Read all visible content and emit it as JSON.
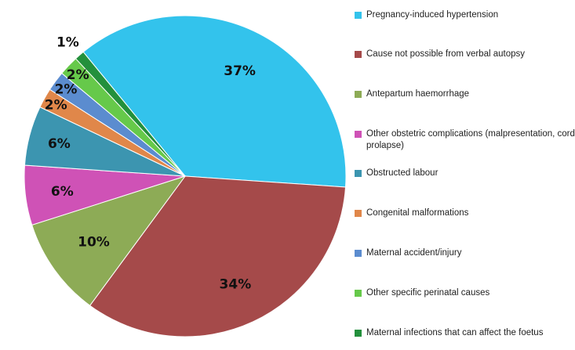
{
  "chart_data": {
    "type": "pie",
    "title": "",
    "legend_position": "right",
    "slices": [
      {
        "label": "Pregnancy-induced hypertension",
        "value": 37,
        "value_label": "37%",
        "color": "#33C3EC"
      },
      {
        "label": "Cause not possible from verbal autopsy",
        "value": 34,
        "value_label": "34%",
        "color": "#A54A4A"
      },
      {
        "label": "Antepartum haemorrhage",
        "value": 10,
        "value_label": "10%",
        "color": "#8DAB56"
      },
      {
        "label": "Other obstetric complications (malpresentation, cord prolapse)",
        "value": 6,
        "value_label": "6%",
        "color": "#CF52B6"
      },
      {
        "label": "Obstructed labour",
        "value": 6,
        "value_label": "6%",
        "color": "#3C95B0"
      },
      {
        "label": "Congenital malformations",
        "value": 2,
        "value_label": "2%",
        "color": "#E0874A"
      },
      {
        "label": "Maternal accident/injury",
        "value": 2,
        "value_label": "2%",
        "color": "#5B8CCF"
      },
      {
        "label": "Other specific perinatal causes",
        "value": 2,
        "value_label": "2%",
        "color": "#66C94A"
      },
      {
        "label": "Maternal infections that can affect the foetus",
        "value": 1,
        "value_label": "1%",
        "color": "#23903C"
      }
    ]
  }
}
